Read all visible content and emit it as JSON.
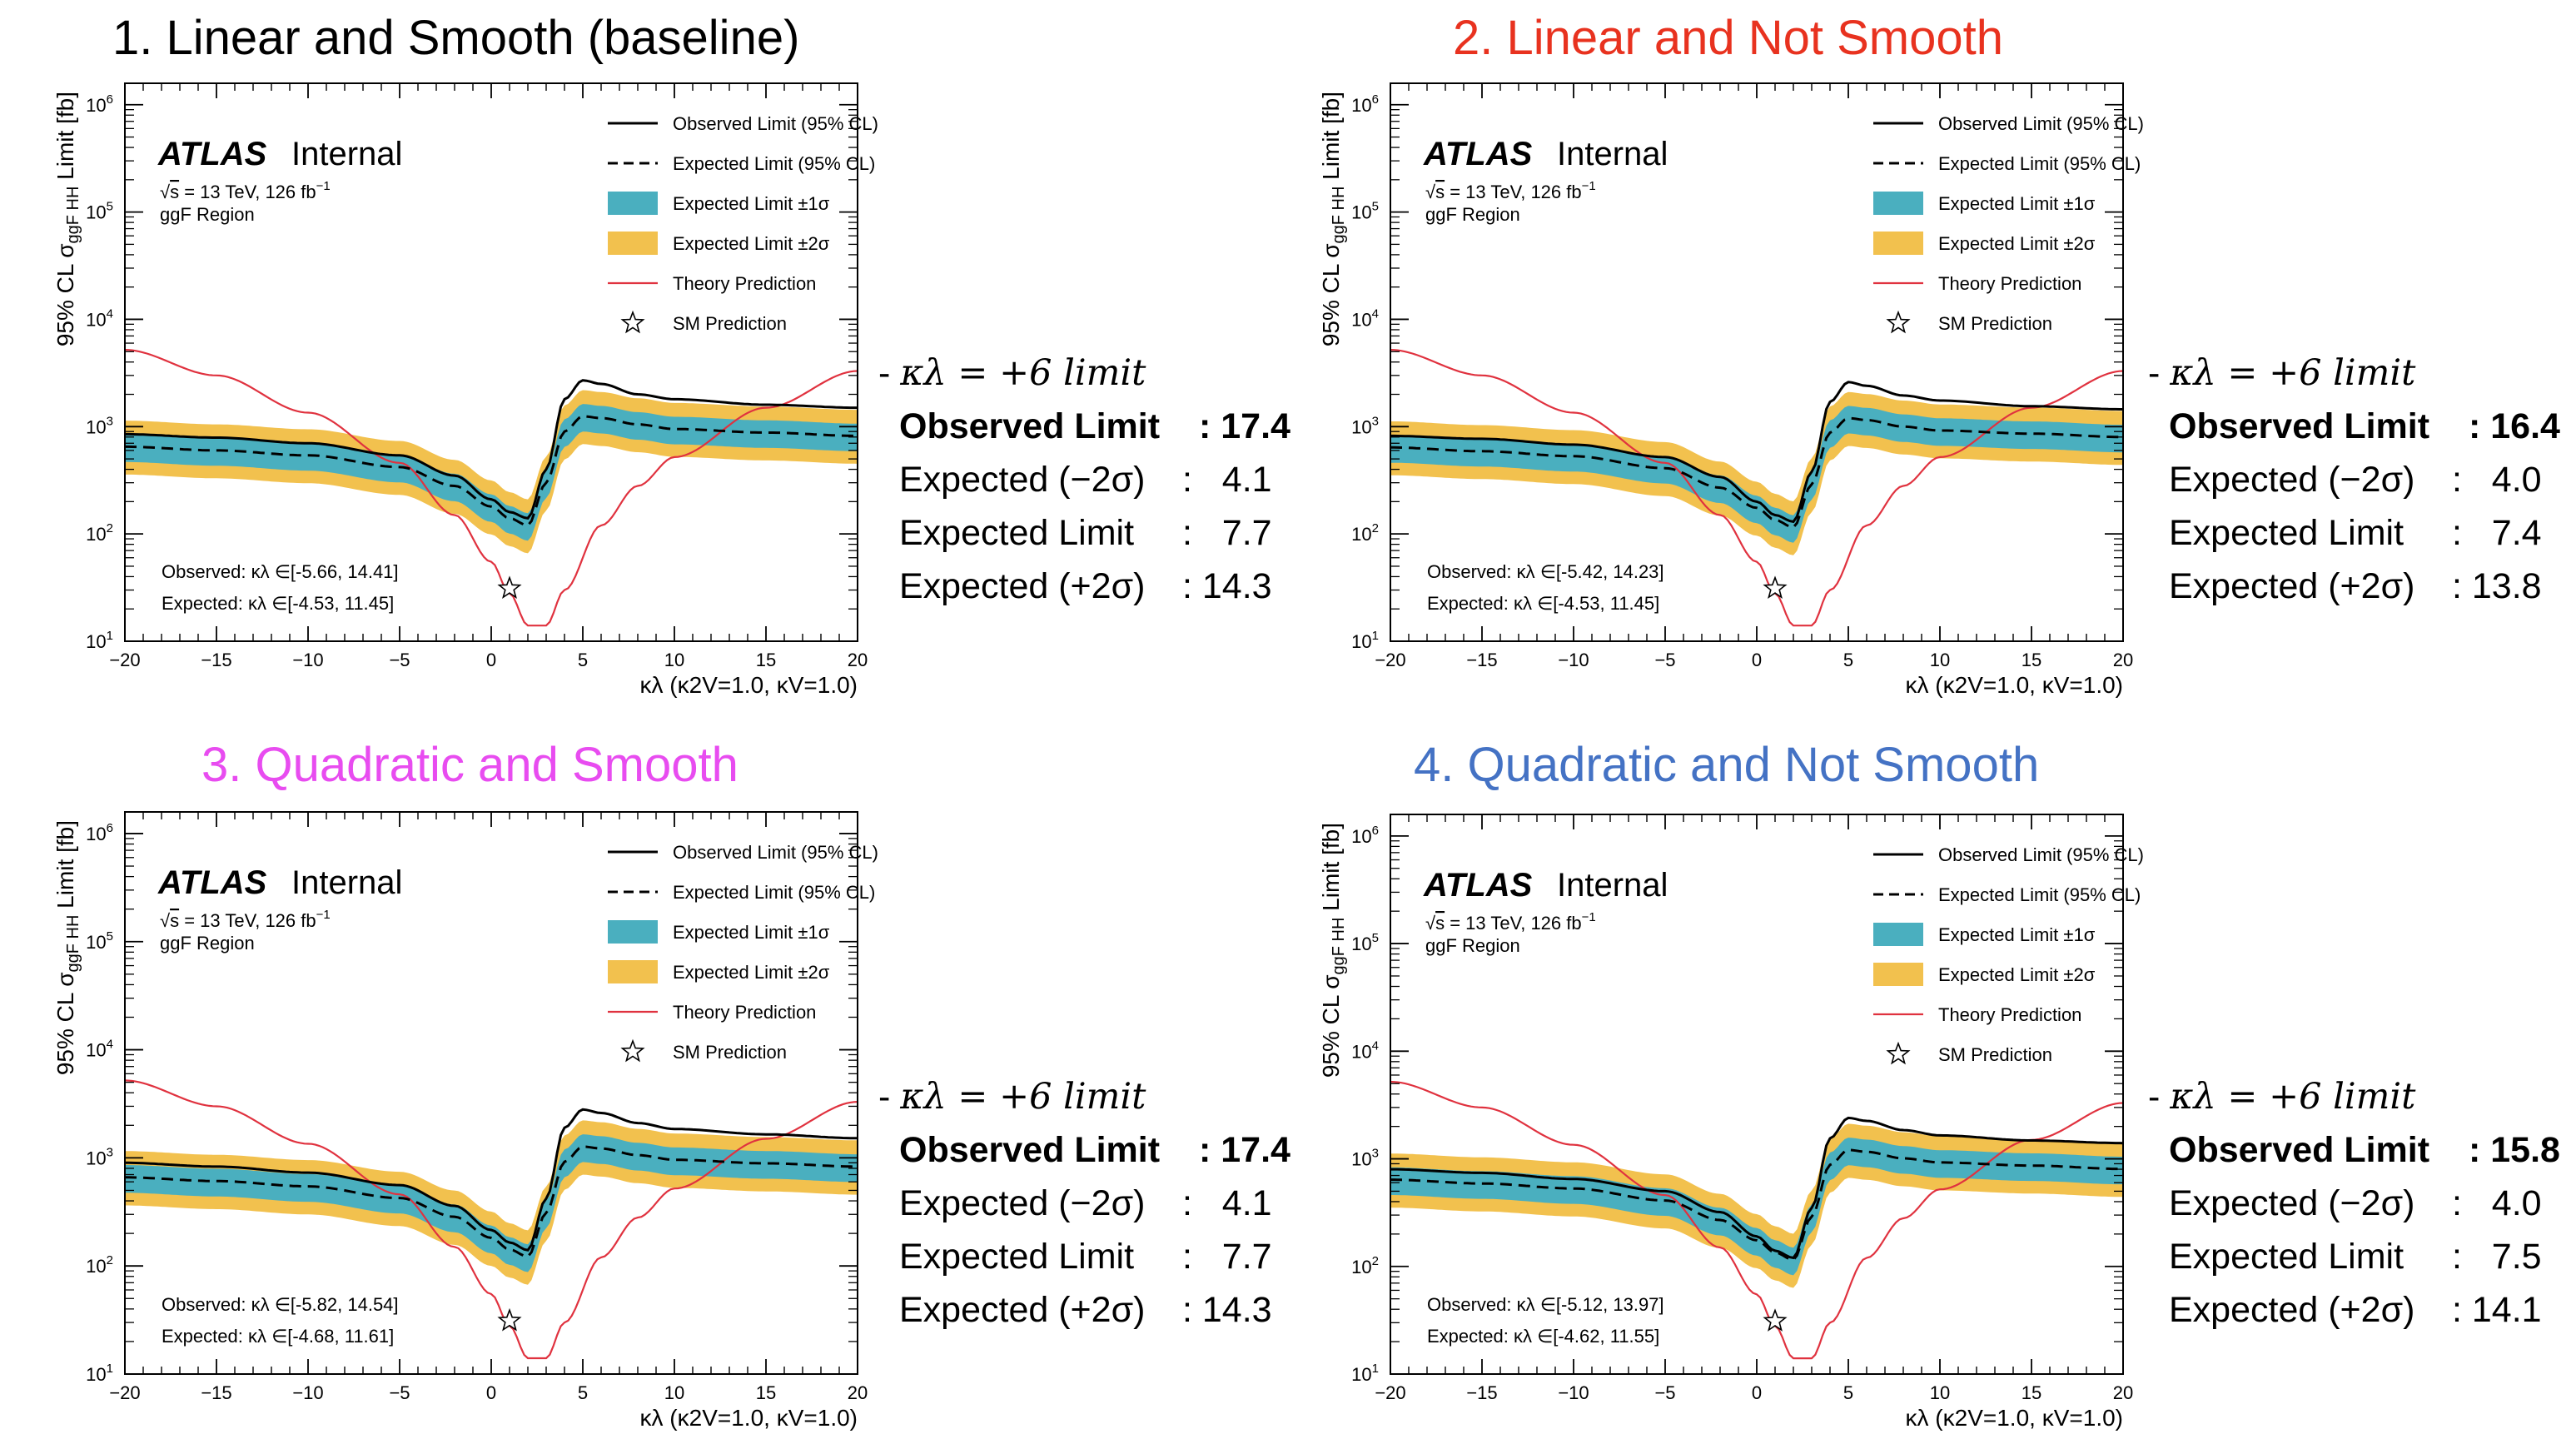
{
  "shared": {
    "atlas_label": "ATLAS",
    "internal_label": "Internal",
    "energy_label": "= 13 TeV, 126 fb",
    "energy_sqrt": "s",
    "energy_exp": "−1",
    "region_label": "ggF Region",
    "y_axis_label_pre": "95% CL σ",
    "y_axis_label_sub": "ggF HH",
    "y_axis_label_post": " Limit [fb]",
    "x_axis_label": "κλ (κ2V=1.0, κV=1.0)",
    "x_ticks": [
      "−20",
      "−15",
      "−10",
      "−5",
      "0",
      "5",
      "10",
      "15",
      "20"
    ],
    "y_ticks": [
      "10",
      "10",
      "10",
      "10",
      "10",
      "10"
    ],
    "y_tick_exps": [
      "1",
      "2",
      "3",
      "4",
      "5",
      "6"
    ],
    "legend": [
      {
        "label": "Observed Limit (95% CL)",
        "style": "solid-black"
      },
      {
        "label": "Expected Limit (95% CL)",
        "style": "dashed-black"
      },
      {
        "label": "Expected Limit ±1σ",
        "style": "band-teal"
      },
      {
        "label": "Expected Limit ±2σ",
        "style": "band-yellow"
      },
      {
        "label": "Theory Prediction",
        "style": "line-red"
      },
      {
        "label": "SM Prediction",
        "style": "star"
      }
    ],
    "side_header": "κλ = +6 limit",
    "side_header_prefix": "- ",
    "row_labels": {
      "observed": "Observed Limit",
      "exp_m2": "Expected (−2σ)",
      "expected": "Expected Limit",
      "exp_p2": "Expected (+2σ)"
    },
    "colors": {
      "observed": "#000000",
      "expected": "#000000",
      "band1": "#4AAFBF",
      "band2": "#F2C14E",
      "theory": "#E0323F"
    }
  },
  "panels": [
    {
      "title": "1. Linear and Smooth (baseline)",
      "title_color": "#000000",
      "observed_interval": "Observed: κλ ∈[-5.66, 14.41]",
      "expected_interval": "Expected: κλ ∈[-4.53, 11.45]",
      "limits": {
        "observed": ": 17.4",
        "exp_m2": ":   4.1",
        "expected": ":   7.7",
        "exp_p2": ": 14.3"
      }
    },
    {
      "title": "2. Linear and Not Smooth",
      "title_color": "#E8321F",
      "observed_interval": "Observed: κλ ∈[-5.42, 14.23]",
      "expected_interval": "Expected: κλ ∈[-4.53, 11.45]",
      "limits": {
        "observed": ": 16.4",
        "exp_m2": ":   4.0",
        "expected": ":   7.4",
        "exp_p2": ": 13.8"
      }
    },
    {
      "title": "3. Quadratic and Smooth",
      "title_color": "#E84CF0",
      "observed_interval": "Observed: κλ ∈[-5.82, 14.54]",
      "expected_interval": "Expected: κλ ∈[-4.68, 11.61]",
      "limits": {
        "observed": ": 17.4",
        "exp_m2": ":   4.1",
        "expected": ":   7.7",
        "exp_p2": ": 14.3"
      }
    },
    {
      "title": "4. Quadratic and Not Smooth",
      "title_color": "#4472C4",
      "observed_interval": "Observed: κλ ∈[-5.12, 13.97]",
      "expected_interval": "Expected: κλ ∈[-4.62, 11.55]",
      "limits": {
        "observed": ": 15.8",
        "exp_m2": ":   4.0",
        "expected": ":   7.5",
        "exp_p2": ": 14.1"
      }
    }
  ],
  "chart_data": [
    {
      "type": "line",
      "xlim": [
        -20,
        20
      ],
      "ylim": [
        10,
        1000000
      ],
      "yscale": "log",
      "grid": false,
      "legend_position": "top-right",
      "sm_point": {
        "x": 1,
        "y": 31
      },
      "series": [
        {
          "name": "Observed Limit (95% CL)",
          "x": [
            -20,
            -15,
            -10,
            -5,
            -2,
            0,
            1,
            2,
            3,
            4,
            5,
            6,
            8,
            10,
            15,
            20
          ],
          "y": [
            850,
            790,
            700,
            540,
            350,
            210,
            160,
            140,
            400,
            1800,
            2700,
            2500,
            2000,
            1800,
            1600,
            1500
          ]
        },
        {
          "name": "Expected Limit (95% CL)",
          "x": [
            -20,
            -15,
            -10,
            -5,
            -2,
            0,
            1,
            2,
            3,
            4,
            5,
            6,
            8,
            10,
            15,
            20
          ],
          "y": [
            650,
            600,
            540,
            420,
            280,
            180,
            140,
            120,
            300,
            900,
            1250,
            1200,
            1050,
            950,
            880,
            820
          ]
        },
        {
          "name": "Theory Prediction",
          "x": [
            -20,
            -15,
            -10,
            -5,
            -2,
            0,
            1,
            2,
            3,
            4,
            6,
            8,
            10,
            15,
            20
          ],
          "y": [
            5200,
            3000,
            1350,
            460,
            150,
            55,
            28,
            14,
            14,
            30,
            120,
            280,
            520,
            1500,
            3300
          ]
        }
      ]
    },
    {
      "type": "line",
      "xlim": [
        -20,
        20
      ],
      "ylim": [
        10,
        1000000
      ],
      "yscale": "log",
      "grid": false,
      "legend_position": "top-right",
      "sm_point": {
        "x": 1,
        "y": 31
      },
      "series": [
        {
          "name": "Observed Limit (95% CL)",
          "x": [
            -20,
            -15,
            -10,
            -5,
            -2,
            0,
            1,
            2,
            3,
            4,
            5,
            6,
            8,
            10,
            15,
            20
          ],
          "y": [
            820,
            770,
            680,
            520,
            340,
            200,
            150,
            130,
            380,
            1700,
            2600,
            2400,
            1950,
            1750,
            1550,
            1450
          ]
        },
        {
          "name": "Expected Limit (95% CL)",
          "x": [
            -20,
            -15,
            -10,
            -5,
            -2,
            0,
            1,
            2,
            3,
            4,
            5,
            6,
            8,
            10,
            15,
            20
          ],
          "y": [
            640,
            590,
            530,
            410,
            270,
            175,
            135,
            115,
            290,
            880,
            1200,
            1150,
            1000,
            920,
            860,
            800
          ]
        },
        {
          "name": "Theory Prediction",
          "x": [
            -20,
            -15,
            -10,
            -5,
            -2,
            0,
            1,
            2,
            3,
            4,
            6,
            8,
            10,
            15,
            20
          ],
          "y": [
            5200,
            3000,
            1350,
            460,
            150,
            55,
            28,
            14,
            14,
            30,
            120,
            280,
            520,
            1500,
            3300
          ]
        }
      ]
    },
    {
      "type": "line",
      "xlim": [
        -20,
        20
      ],
      "ylim": [
        10,
        1000000
      ],
      "yscale": "log",
      "grid": false,
      "legend_position": "top-right",
      "sm_point": {
        "x": 1,
        "y": 31
      },
      "series": [
        {
          "name": "Observed Limit (95% CL)",
          "x": [
            -20,
            -15,
            -10,
            -5,
            -2,
            0,
            1,
            2,
            3,
            4,
            5,
            6,
            8,
            10,
            15,
            20
          ],
          "y": [
            900,
            830,
            730,
            560,
            360,
            215,
            165,
            140,
            420,
            1900,
            2800,
            2600,
            2100,
            1850,
            1650,
            1520
          ]
        },
        {
          "name": "Expected Limit (95% CL)",
          "x": [
            -20,
            -15,
            -10,
            -5,
            -2,
            0,
            1,
            2,
            3,
            4,
            5,
            6,
            8,
            10,
            15,
            20
          ],
          "y": [
            660,
            610,
            545,
            425,
            285,
            182,
            142,
            122,
            310,
            920,
            1270,
            1220,
            1060,
            960,
            890,
            830
          ]
        },
        {
          "name": "Theory Prediction",
          "x": [
            -20,
            -15,
            -10,
            -5,
            -2,
            0,
            1,
            2,
            3,
            4,
            6,
            8,
            10,
            15,
            20
          ],
          "y": [
            5200,
            3000,
            1350,
            460,
            150,
            55,
            28,
            14,
            14,
            30,
            120,
            280,
            520,
            1500,
            3300
          ]
        }
      ]
    },
    {
      "type": "line",
      "xlim": [
        -20,
        20
      ],
      "ylim": [
        10,
        1000000
      ],
      "yscale": "log",
      "grid": false,
      "legend_position": "top-right",
      "sm_point": {
        "x": 1,
        "y": 31
      },
      "series": [
        {
          "name": "Observed Limit (95% CL)",
          "x": [
            -20,
            -15,
            -10,
            -5,
            -2,
            0,
            1,
            2,
            3,
            4,
            5,
            6,
            8,
            10,
            15,
            20
          ],
          "y": [
            800,
            740,
            650,
            500,
            320,
            190,
            140,
            120,
            350,
            1550,
            2400,
            2250,
            1850,
            1650,
            1480,
            1400
          ]
        },
        {
          "name": "Expected Limit (95% CL)",
          "x": [
            -20,
            -15,
            -10,
            -5,
            -2,
            0,
            1,
            2,
            3,
            4,
            5,
            6,
            8,
            10,
            15,
            20
          ],
          "y": [
            640,
            590,
            530,
            410,
            270,
            175,
            135,
            115,
            290,
            880,
            1210,
            1160,
            1010,
            925,
            865,
            805
          ]
        },
        {
          "name": "Theory Prediction",
          "x": [
            -20,
            -15,
            -10,
            -5,
            -2,
            0,
            1,
            2,
            3,
            4,
            6,
            8,
            10,
            15,
            20
          ],
          "y": [
            5200,
            3000,
            1350,
            460,
            150,
            55,
            28,
            14,
            14,
            30,
            120,
            280,
            520,
            1500,
            3300
          ]
        }
      ]
    }
  ]
}
